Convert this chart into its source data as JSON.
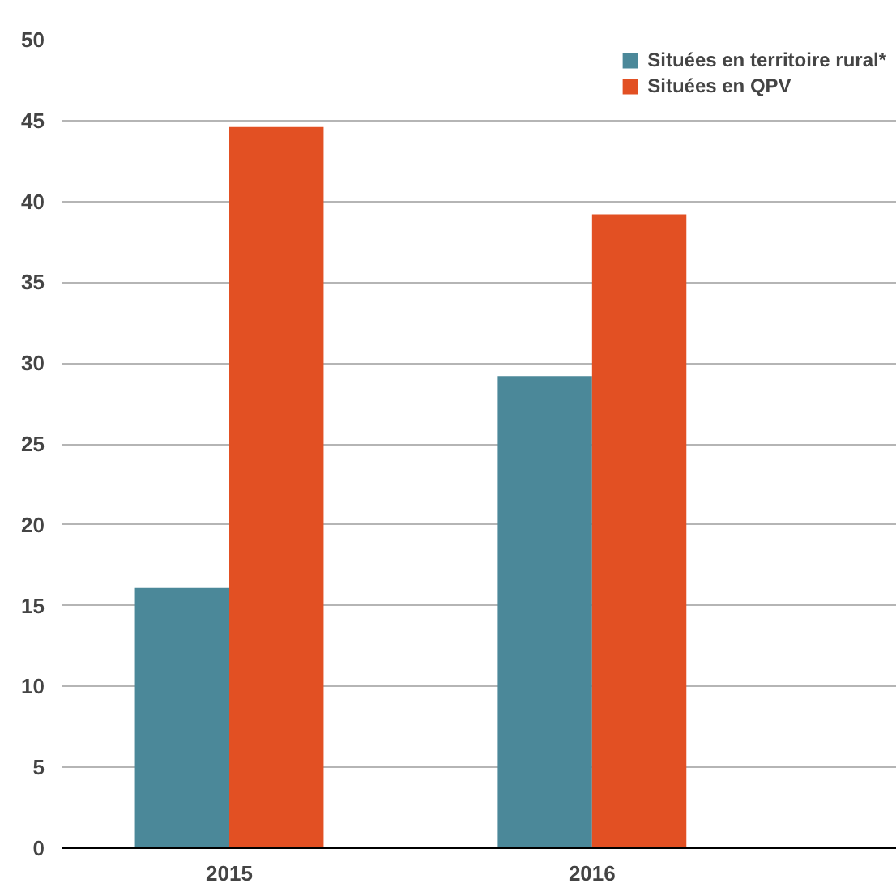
{
  "chart_data": {
    "type": "bar",
    "categories": [
      "2015",
      "2016"
    ],
    "series": [
      {
        "name": "Situées en territoire rural*",
        "color": "#4b8899",
        "values": [
          16.1,
          29.2
        ]
      },
      {
        "name": "Situées en QPV",
        "color": "#e25023",
        "values": [
          44.6,
          39.2
        ]
      }
    ],
    "ylim": [
      0,
      50
    ],
    "yticks": [
      0,
      5,
      10,
      15,
      20,
      25,
      30,
      35,
      40,
      45,
      50
    ],
    "grid": "y",
    "legend": "top right"
  }
}
